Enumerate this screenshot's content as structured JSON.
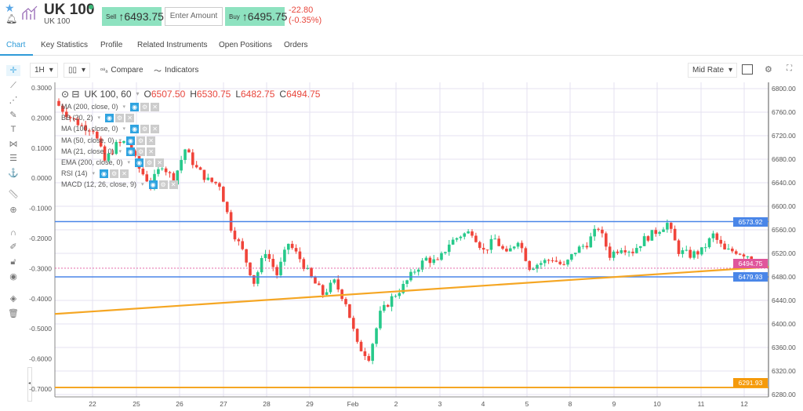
{
  "header": {
    "title": "UK 100",
    "subtitle": "UK 100",
    "sell_label": "Sell",
    "sell_price": "6493.75",
    "amount_placeholder": "Enter Amount",
    "buy_label": "Buy",
    "buy_price": "6495.75",
    "change": "-22.80",
    "change_pct": "(-0.35%)"
  },
  "tabs": [
    {
      "label": "Chart",
      "active": true
    },
    {
      "label": "Key Statistics"
    },
    {
      "label": "Profile"
    },
    {
      "label": "Related Instruments"
    },
    {
      "label": "Open Positions"
    },
    {
      "label": "Orders"
    }
  ],
  "toolbar": {
    "interval": "1H",
    "compare": "Compare",
    "indicators": "Indicators",
    "price_type": "Mid Rate"
  },
  "legend": {
    "symbol": "UK 100, 60",
    "o_label": "O",
    "open": "6507.50",
    "h_label": "H",
    "high": "6530.75",
    "l_label": "L",
    "low": "6482.75",
    "c_label": "C",
    "close": "6494.75"
  },
  "indicators": [
    "MA (200, close, 0)",
    "BB (20, 2)",
    "MA (100, close, 0)",
    "MA (50, close, 0)",
    "MA (21, close, 0)",
    "EMA (200, close, 0)",
    "RSI (14)",
    "MACD (12, 26, close, 9)"
  ],
  "chart_data": {
    "type": "candlestick",
    "x_ticks": [
      "22",
      "25",
      "26",
      "27",
      "28",
      "29",
      "Feb",
      "2",
      "3",
      "4",
      "5",
      "8",
      "9",
      "10",
      "11",
      "12"
    ],
    "left_axis": {
      "ticks": [
        "0.3000",
        "0.2000",
        "0.1000",
        "0.0000",
        "-0.1000",
        "-0.2000",
        "-0.3000",
        "-0.4000",
        "-0.5000",
        "-0.6000",
        "-0.7000"
      ],
      "range": [
        -0.72,
        0.31
      ]
    },
    "right_axis": {
      "ticks": [
        "6800.00",
        "6760.00",
        "6720.00",
        "6680.00",
        "6640.00",
        "6600.00",
        "6560.00",
        "6520.00",
        "6480.00",
        "6440.00",
        "6400.00",
        "6360.00",
        "6320.00",
        "6280.00"
      ],
      "range": [
        6276,
        6812
      ]
    },
    "closes": [
      6771,
      6751,
      6737,
      6731,
      6677,
      6704,
      6711,
      6664,
      6637,
      6671,
      6644,
      6697,
      6664,
      6644,
      6637,
      6564,
      6524,
      6471,
      6524,
      6484,
      6537,
      6511,
      6477,
      6451,
      6471,
      6437,
      6364,
      6344,
      6417,
      6444,
      6464,
      6491,
      6511,
      6504,
      6537,
      6551,
      6557,
      6524,
      6544,
      6517,
      6544,
      6497,
      6504,
      6511,
      6497,
      6524,
      6537,
      6564,
      6517,
      6531,
      6524,
      6544,
      6557,
      6571,
      6524,
      6517,
      6524,
      6551,
      6524,
      6524,
      6517,
      6494.75
    ],
    "resistance": {
      "value": 6573.92,
      "label": "6573.92",
      "color": "#4a86e8"
    },
    "support": {
      "value": 6479.93,
      "label": "6479.93",
      "color": "#4a86e8"
    },
    "low_line": {
      "value": 6291.93,
      "label": "6291.93",
      "color": "#f5a623"
    },
    "trendline": {
      "from": 6417,
      "to": 6497,
      "color": "#f5a623"
    },
    "current": {
      "value": 6494.75,
      "label": "6494.75",
      "color": "#e0569c"
    },
    "up_color": "#26c98a",
    "down_color": "#f0443a",
    "grid": true
  }
}
